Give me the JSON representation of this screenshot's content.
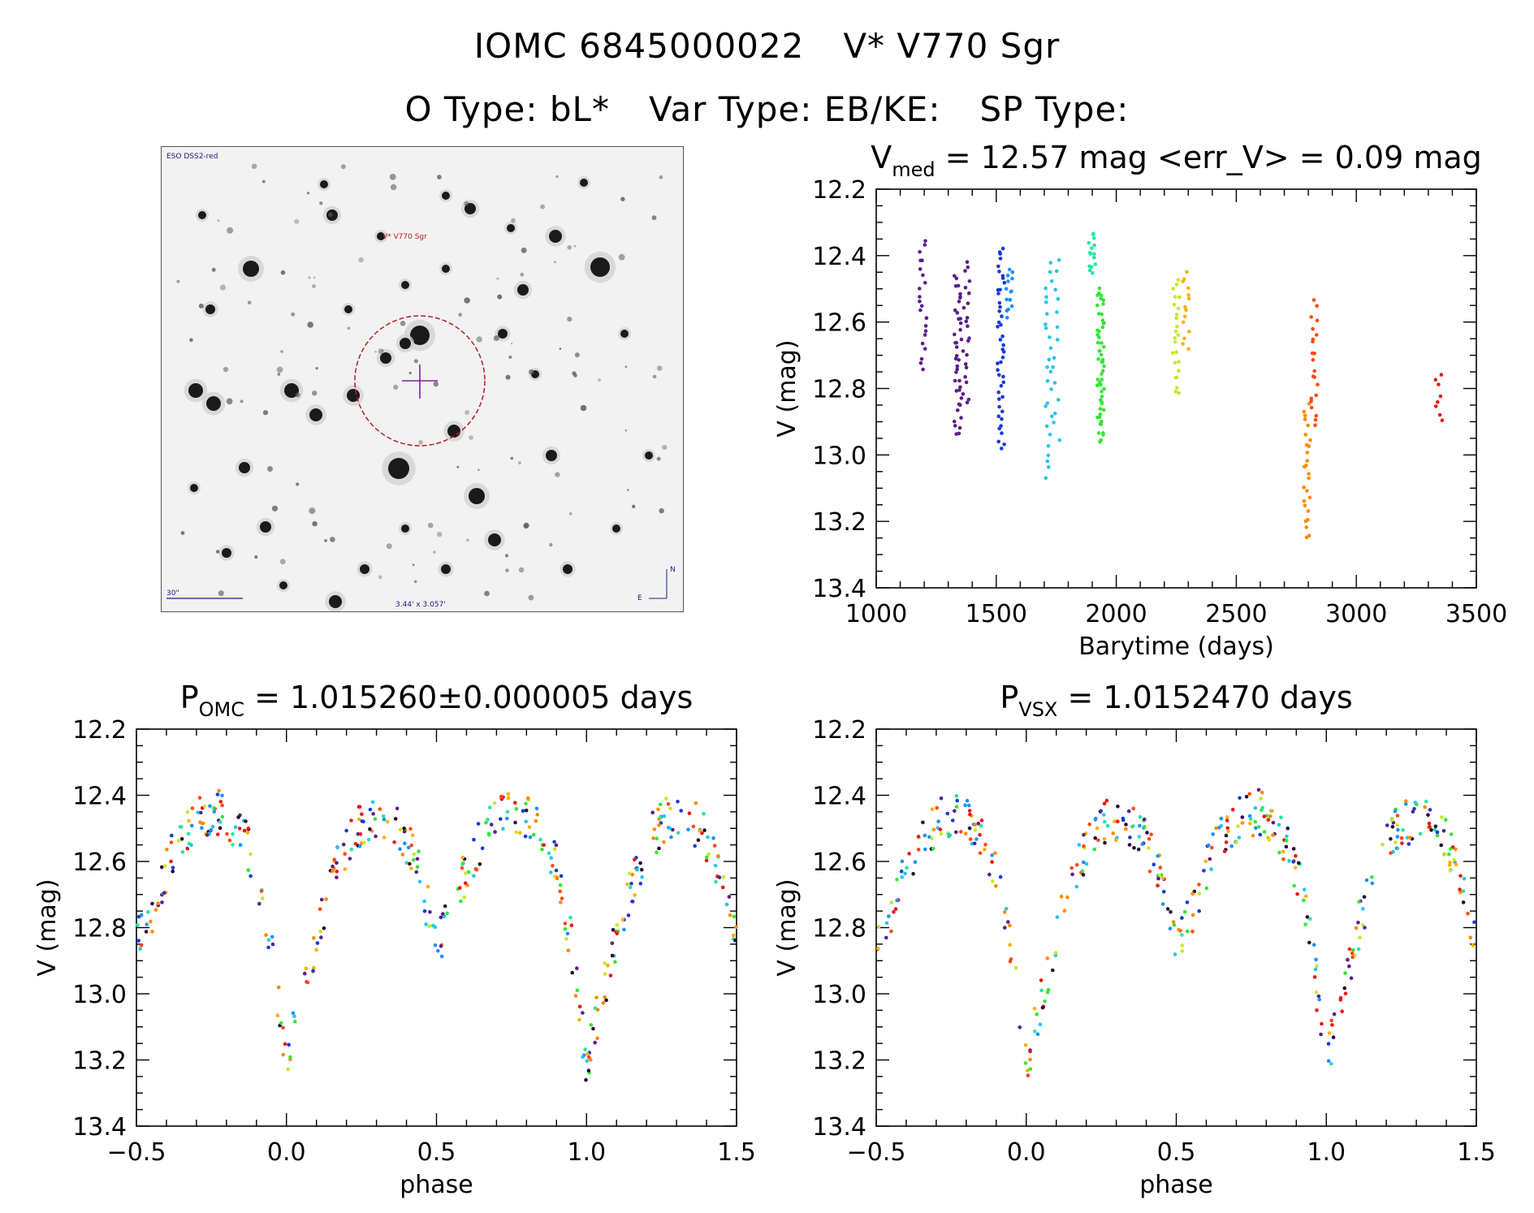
{
  "header": {
    "id_omc": "IOMC 6845000022",
    "id_name": "V* V770 Sgr",
    "otype": "O Type: bL*",
    "vartype": "Var Type: EB/KE:",
    "sptype": "SP Type:"
  },
  "image": {
    "survey_label": "ESO DSS2-red",
    "target_label": "V* V770 Sgr",
    "scale_label": "30\"",
    "size_label": "3.44' x 3.057'",
    "compass_n": "N",
    "compass_e": "E"
  },
  "colors": {
    "palette": [
      "#2a0a3a",
      "#5a1f8a",
      "#1a3ad8",
      "#1e90ff",
      "#22c8e8",
      "#22e8a0",
      "#32e832",
      "#c8e82a",
      "#ffb000",
      "#ff8a00",
      "#ff4a10",
      "#e81818"
    ],
    "finder_circle": "#b02020",
    "crosshair": "#8020a0"
  },
  "chart_data": [
    {
      "type": "scatter",
      "id": "lightcurve",
      "title_main": "V",
      "title_sub": "med",
      "title_rest": " = 12.57 mag <err_V> = 0.09 mag",
      "xlabel": "Barytime (days)",
      "ylabel": "V (mag)",
      "xlim": [
        1000,
        3500
      ],
      "ylim": [
        13.4,
        12.2
      ],
      "y_inverted": true,
      "xticks": [
        1000,
        1500,
        2000,
        2500,
        3000,
        3500
      ],
      "yticks": [
        12.2,
        12.4,
        12.6,
        12.8,
        13.0,
        13.2,
        13.4
      ],
      "clusters": [
        {
          "x": 1195,
          "ymin": 12.35,
          "ymax": 12.74,
          "n": 22,
          "color": "#5a1f8a"
        },
        {
          "x": 1340,
          "ymin": 12.46,
          "ymax": 12.94,
          "n": 40,
          "color": "#5a1f8a"
        },
        {
          "x": 1375,
          "ymin": 12.41,
          "ymax": 12.85,
          "n": 22,
          "color": "#5a1f8a"
        },
        {
          "x": 1520,
          "ymin": 12.37,
          "ymax": 12.98,
          "n": 45,
          "color": "#1a3ad8"
        },
        {
          "x": 1555,
          "ymin": 12.45,
          "ymax": 12.58,
          "n": 15,
          "color": "#1e90ff"
        },
        {
          "x": 1720,
          "ymin": 12.42,
          "ymax": 13.07,
          "n": 26,
          "color": "#22c8e8"
        },
        {
          "x": 1750,
          "ymin": 12.41,
          "ymax": 12.95,
          "n": 14,
          "color": "#22c8e8"
        },
        {
          "x": 1900,
          "ymin": 12.33,
          "ymax": 12.46,
          "n": 15,
          "color": "#22e8a0"
        },
        {
          "x": 1935,
          "ymin": 12.5,
          "ymax": 12.96,
          "n": 55,
          "color": "#32e832"
        },
        {
          "x": 2250,
          "ymin": 12.47,
          "ymax": 12.82,
          "n": 24,
          "color": "#c8e82a"
        },
        {
          "x": 2290,
          "ymin": 12.45,
          "ymax": 12.68,
          "n": 14,
          "color": "#ffb000"
        },
        {
          "x": 2795,
          "ymin": 12.85,
          "ymax": 13.25,
          "n": 26,
          "color": "#ff8a00"
        },
        {
          "x": 2825,
          "ymin": 12.54,
          "ymax": 12.92,
          "n": 22,
          "color": "#ff4a10"
        },
        {
          "x": 3345,
          "ymin": 12.75,
          "ymax": 12.9,
          "n": 8,
          "color": "#e81818"
        }
      ]
    },
    {
      "type": "scatter",
      "id": "phase_omc",
      "title_main": "P",
      "title_sub": "OMC",
      "title_rest": " = 1.015260±0.000005 days",
      "xlabel": "phase",
      "ylabel": "V (mag)",
      "xlim": [
        -0.5,
        1.5
      ],
      "ylim": [
        13.4,
        12.2
      ],
      "y_inverted": true,
      "xticks": [
        -0.5,
        0.0,
        0.5,
        1.0,
        1.5
      ],
      "xticklabels": [
        "−0.5",
        "0.0",
        "0.5",
        "1.0",
        "1.5"
      ],
      "yticks": [
        12.2,
        12.4,
        12.6,
        12.8,
        13.0,
        13.2,
        13.4
      ],
      "curve": {
        "phase": [
          0.0,
          0.04,
          0.08,
          0.12,
          0.18,
          0.22,
          0.26,
          0.32,
          0.38,
          0.44,
          0.48,
          0.5,
          0.54,
          0.6,
          0.66,
          0.72,
          0.78,
          0.84,
          0.9,
          0.95,
          1.0
        ],
        "mag": [
          13.22,
          13.05,
          12.9,
          12.75,
          12.6,
          12.52,
          12.48,
          12.47,
          12.5,
          12.62,
          12.78,
          12.85,
          12.78,
          12.62,
          12.52,
          12.47,
          12.45,
          12.5,
          12.62,
          12.85,
          13.22
        ]
      }
    },
    {
      "type": "scatter",
      "id": "phase_vsx",
      "title_main": "P",
      "title_sub": "VSX",
      "title_rest": " = 1.0152470 days",
      "xlabel": "phase",
      "ylabel": "V (mag)",
      "xlim": [
        -0.5,
        1.5
      ],
      "ylim": [
        13.4,
        12.2
      ],
      "y_inverted": true,
      "xticks": [
        -0.5,
        0.0,
        0.5,
        1.0,
        1.5
      ],
      "xticklabels": [
        "−0.5",
        "0.0",
        "0.5",
        "1.0",
        "1.5"
      ],
      "yticks": [
        12.2,
        12.4,
        12.6,
        12.8,
        13.0,
        13.2,
        13.4
      ],
      "curve": {
        "phase": [
          0.0,
          0.04,
          0.08,
          0.12,
          0.18,
          0.22,
          0.26,
          0.32,
          0.38,
          0.44,
          0.48,
          0.5,
          0.54,
          0.6,
          0.66,
          0.72,
          0.78,
          0.84,
          0.9,
          0.95,
          1.0
        ],
        "mag": [
          13.22,
          13.05,
          12.9,
          12.75,
          12.6,
          12.52,
          12.48,
          12.47,
          12.5,
          12.62,
          12.78,
          12.85,
          12.78,
          12.62,
          12.52,
          12.47,
          12.45,
          12.5,
          12.62,
          12.85,
          13.22
        ]
      }
    }
  ]
}
